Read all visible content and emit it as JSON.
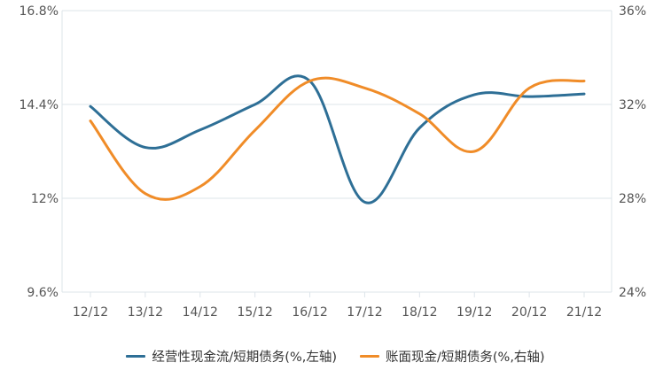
{
  "chart_data": {
    "type": "line",
    "categories": [
      "12/12",
      "13/12",
      "14/12",
      "15/12",
      "16/12",
      "17/12",
      "18/12",
      "19/12",
      "20/12",
      "21/12"
    ],
    "y_left": {
      "ticks": [
        "16.8%",
        "14.4%",
        "12%",
        "9.6%"
      ],
      "range": [
        9.6,
        16.8
      ]
    },
    "y_right": {
      "ticks": [
        "36%",
        "32%",
        "28%",
        "24%"
      ],
      "range": [
        24,
        36
      ]
    },
    "grid": true,
    "legend_position": "bottom",
    "series": [
      {
        "name": "经营性现金流/短期债务(%,左轴)",
        "axis": "left",
        "color": "#2e6f96",
        "values": [
          14.35,
          13.3,
          13.75,
          14.4,
          15.0,
          11.9,
          13.8,
          14.65,
          14.6,
          14.67
        ]
      },
      {
        "name": "账面现金/短期债务(%,右轴)",
        "axis": "right",
        "color": "#f08c28",
        "values": [
          31.3,
          28.2,
          28.5,
          30.9,
          33.0,
          32.7,
          31.6,
          30.0,
          32.7,
          33.0
        ]
      }
    ]
  }
}
